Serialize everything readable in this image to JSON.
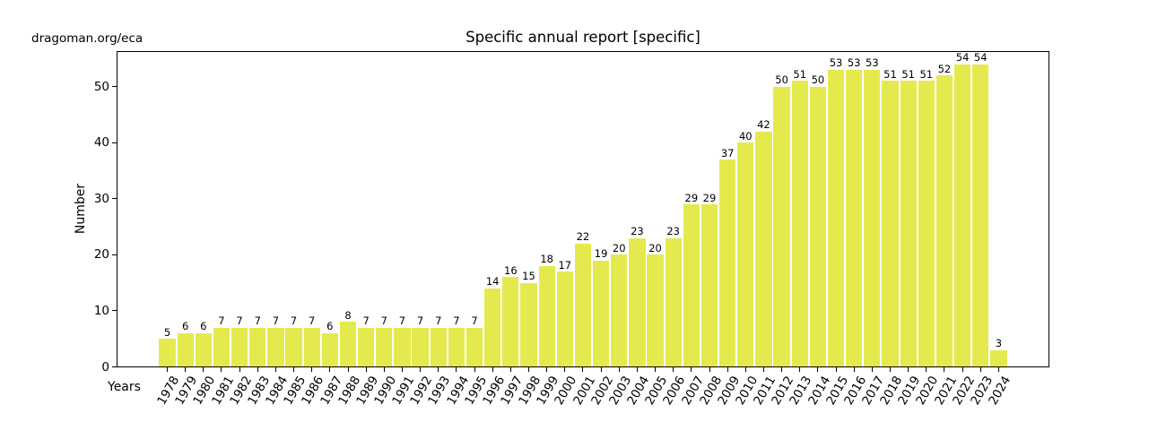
{
  "header": {
    "corner_text": "dragoman.org/eca"
  },
  "chart_data": {
    "type": "bar",
    "title": "Specific annual report [specific]",
    "xlabel": "Years",
    "ylabel": "Number",
    "categories": [
      "1978",
      "1979",
      "1980",
      "1981",
      "1982",
      "1983",
      "1984",
      "1985",
      "1986",
      "1987",
      "1988",
      "1989",
      "1990",
      "1991",
      "1992",
      "1993",
      "1994",
      "1995",
      "1996",
      "1997",
      "1998",
      "1999",
      "2000",
      "2001",
      "2002",
      "2003",
      "2004",
      "2005",
      "2006",
      "2007",
      "2008",
      "2009",
      "2010",
      "2011",
      "2012",
      "2013",
      "2014",
      "2015",
      "2016",
      "2017",
      "2018",
      "2019",
      "2020",
      "2021",
      "2022",
      "2023",
      "2024"
    ],
    "values": [
      5,
      6,
      6,
      7,
      7,
      7,
      7,
      7,
      7,
      6,
      8,
      7,
      7,
      7,
      7,
      7,
      7,
      7,
      14,
      16,
      15,
      18,
      17,
      22,
      19,
      20,
      23,
      20,
      23,
      29,
      29,
      37,
      40,
      42,
      50,
      51,
      50,
      53,
      53,
      53,
      51,
      51,
      51,
      52,
      54,
      54,
      3
    ],
    "value_labels_shown": true,
    "yticks": [
      0,
      10,
      20,
      30,
      40,
      50
    ],
    "ylim": [
      0,
      56.4
    ],
    "grid": false,
    "legend": null,
    "bar_color": "#e4ea4e",
    "text_color": "#000000",
    "background_color": "#ffffff"
  }
}
